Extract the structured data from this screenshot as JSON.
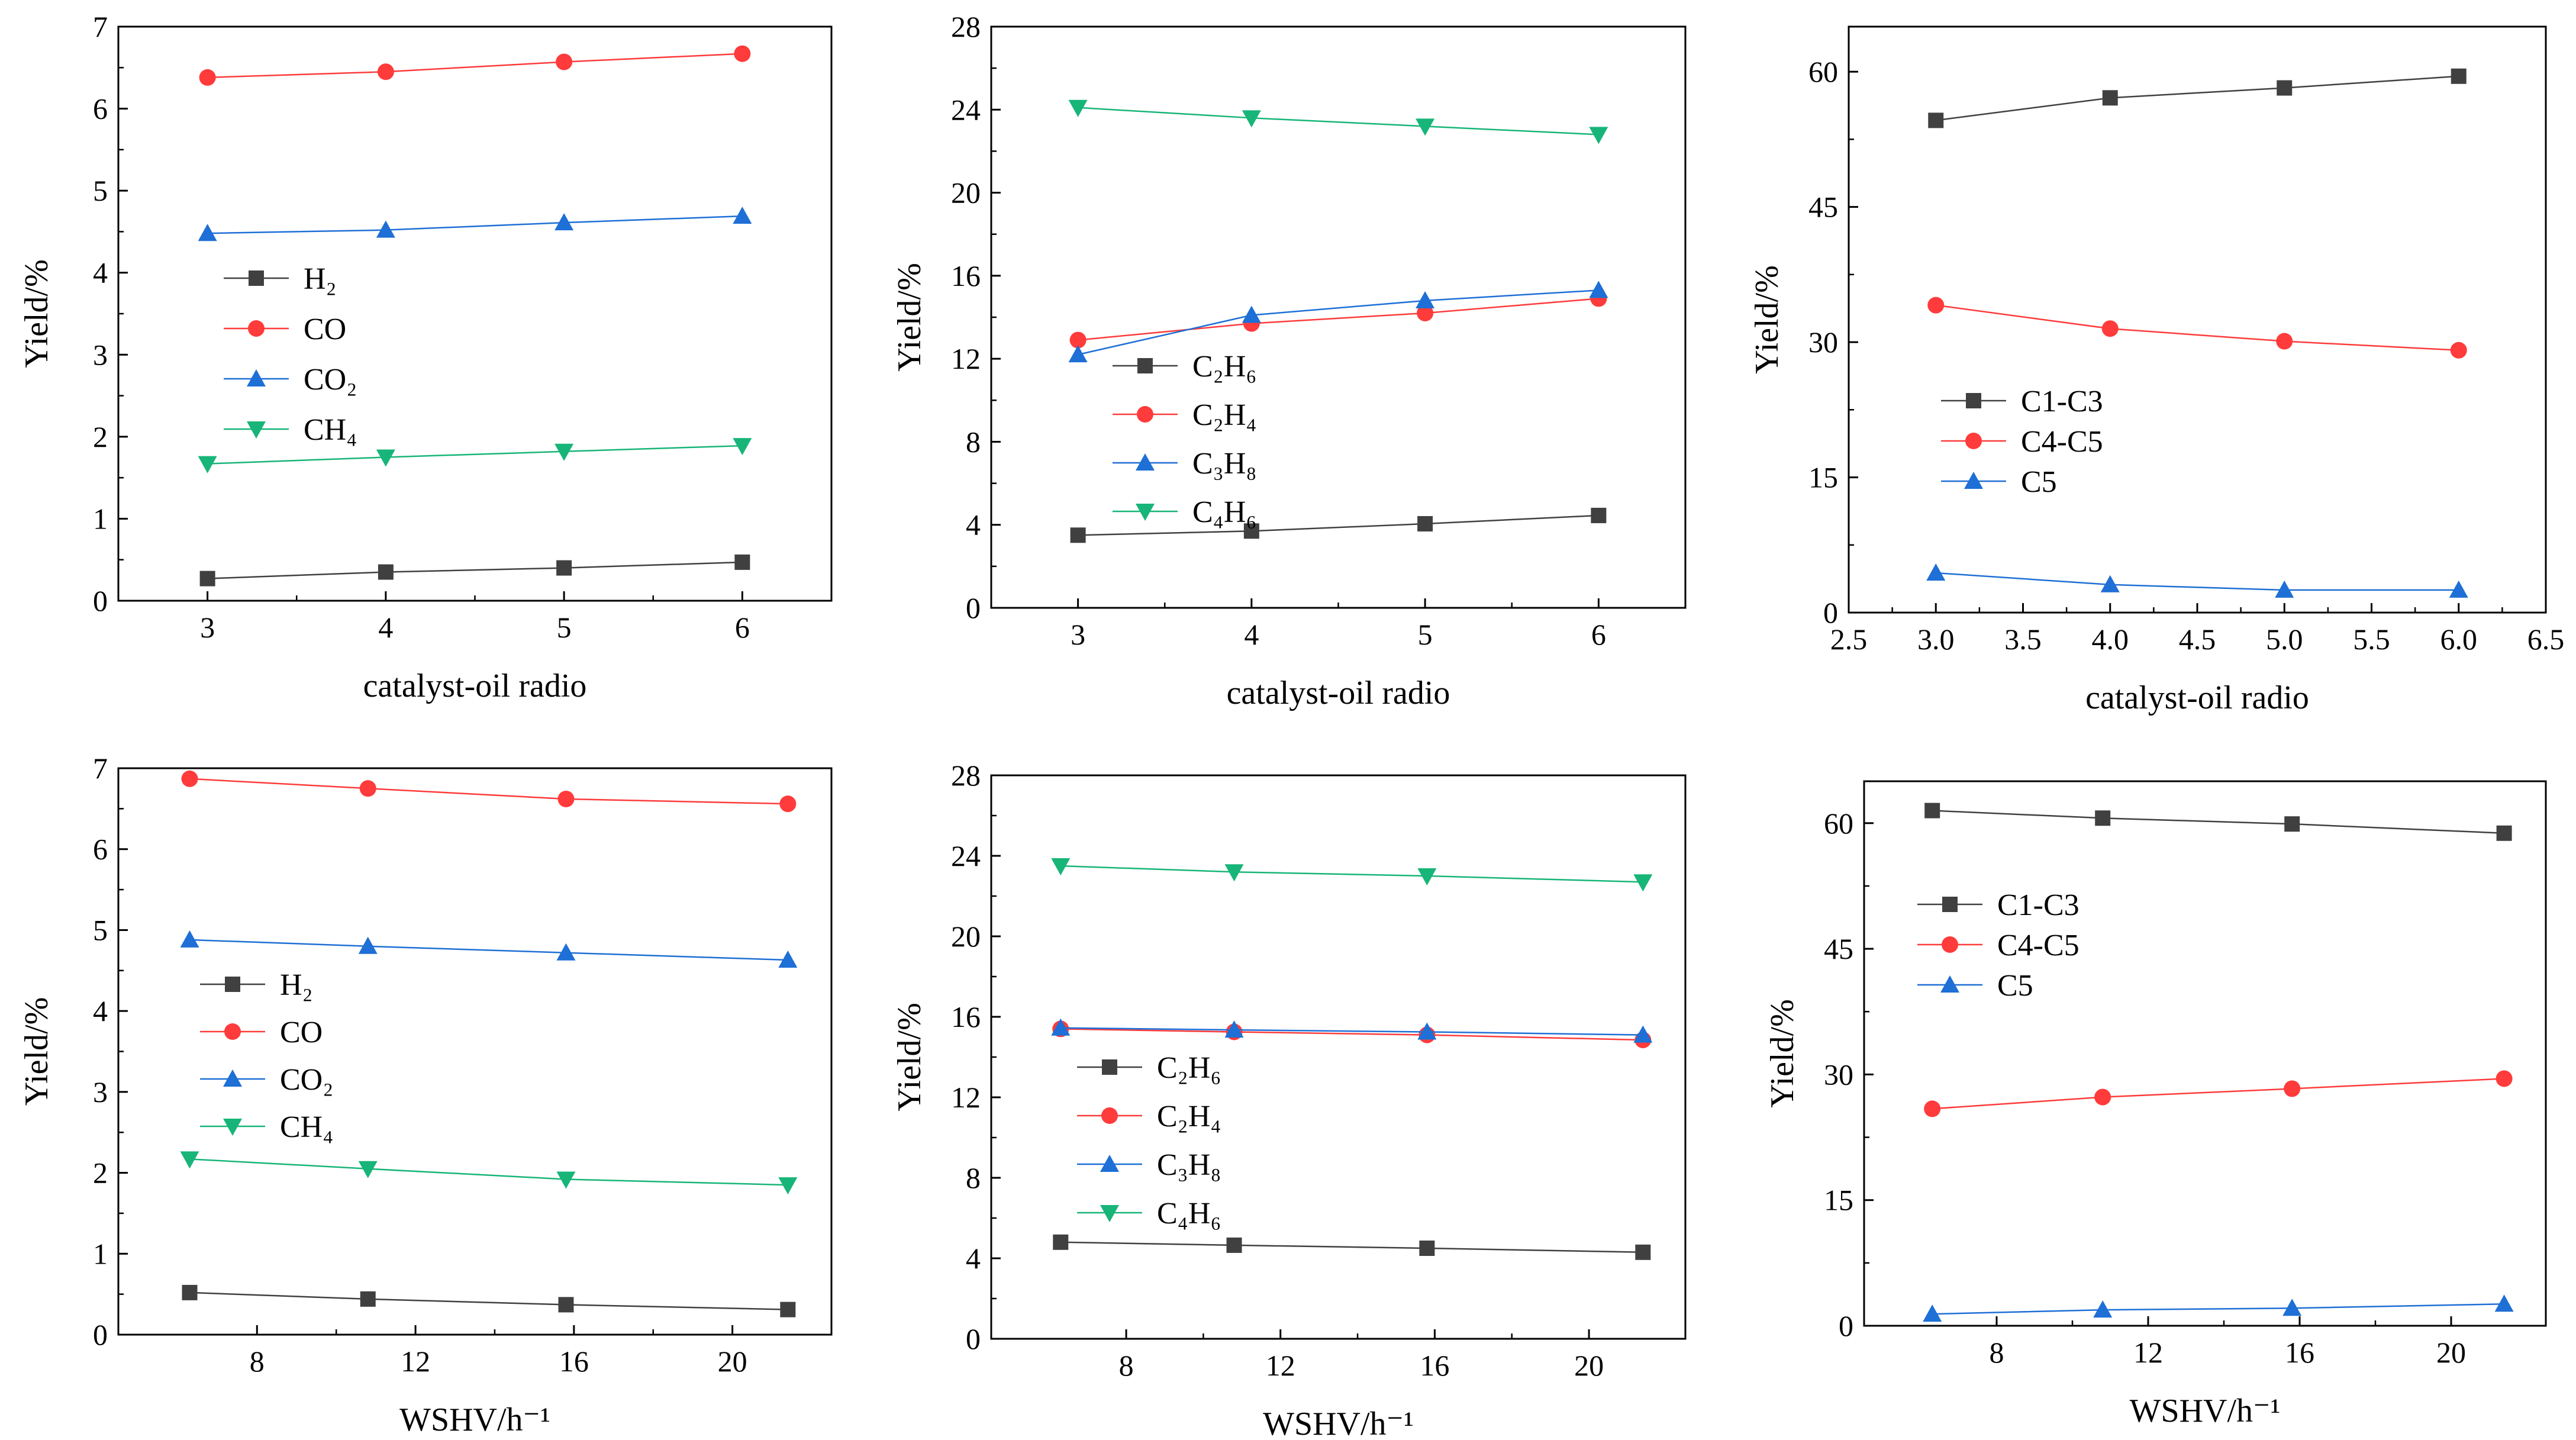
{
  "chart_data": [
    {
      "type": "line",
      "xlabel": "catalyst-oil radio",
      "ylabel": "Yield/%",
      "xlim": [
        2.5,
        6.5
      ],
      "ylim": [
        0,
        7
      ],
      "xticks": [
        "3",
        "4",
        "5",
        "6"
      ],
      "xtick_values": [
        3,
        4,
        5,
        6
      ],
      "yticks": [
        "0",
        "1",
        "2",
        "3",
        "4",
        "5",
        "6",
        "7"
      ],
      "ytick_values": [
        0,
        1,
        2,
        3,
        4,
        5,
        6,
        7
      ],
      "legend": "center-left",
      "series": [
        {
          "name": "H₂",
          "marker": "square",
          "color": "#404040",
          "x": [
            3,
            4,
            5,
            6
          ],
          "values": [
            0.27,
            0.35,
            0.4,
            0.47
          ]
        },
        {
          "name": "CO",
          "marker": "circle",
          "color": "#ff3b3b",
          "x": [
            3,
            4,
            5,
            6
          ],
          "values": [
            6.38,
            6.45,
            6.57,
            6.67
          ]
        },
        {
          "name": "CO₂",
          "marker": "triangle-up",
          "color": "#1e6fd6",
          "x": [
            3,
            4,
            5,
            6
          ],
          "values": [
            4.48,
            4.52,
            4.61,
            4.69
          ]
        },
        {
          "name": "CH₄",
          "marker": "triangle-down",
          "color": "#17b578",
          "x": [
            3,
            4,
            5,
            6
          ],
          "values": [
            1.67,
            1.75,
            1.82,
            1.89
          ]
        }
      ]
    },
    {
      "type": "line",
      "xlabel": "catalyst-oil radio",
      "ylabel": "Yield/%",
      "xlim": [
        2.5,
        6.5
      ],
      "ylim": [
        0,
        28
      ],
      "xticks": [
        "3",
        "4",
        "5",
        "6"
      ],
      "xtick_values": [
        3,
        4,
        5,
        6
      ],
      "yticks": [
        "0",
        "4",
        "8",
        "12",
        "16",
        "20",
        "24",
        "28"
      ],
      "ytick_values": [
        0,
        4,
        8,
        12,
        16,
        20,
        24,
        28
      ],
      "legend": "center-left",
      "series": [
        {
          "name": "C₂H₆",
          "marker": "square",
          "color": "#404040",
          "x": [
            3,
            4,
            5,
            6
          ],
          "values": [
            3.5,
            3.7,
            4.05,
            4.45
          ]
        },
        {
          "name": "C₂H₄",
          "marker": "circle",
          "color": "#ff3b3b",
          "x": [
            3,
            4,
            5,
            6
          ],
          "values": [
            12.9,
            13.7,
            14.2,
            14.9
          ]
        },
        {
          "name": "C₃H₈",
          "marker": "triangle-up",
          "color": "#1e6fd6",
          "x": [
            3,
            4,
            5,
            6
          ],
          "values": [
            12.2,
            14.1,
            14.8,
            15.3
          ]
        },
        {
          "name": "C₄H₆",
          "marker": "triangle-down",
          "color": "#17b578",
          "x": [
            3,
            4,
            5,
            6
          ],
          "values": [
            24.1,
            23.6,
            23.2,
            22.8
          ]
        }
      ]
    },
    {
      "type": "line",
      "xlabel": "catalyst-oil radio",
      "ylabel": "Yield/%",
      "xlim": [
        2.5,
        6.5
      ],
      "ylim": [
        0,
        65
      ],
      "xticks": [
        "2.5",
        "3.0",
        "3.5",
        "4.0",
        "4.5",
        "5.0",
        "5.5",
        "6.0",
        "6.5"
      ],
      "xtick_values": [
        2.5,
        3.0,
        3.5,
        4.0,
        4.5,
        5.0,
        5.5,
        6.0,
        6.5
      ],
      "yticks": [
        "0",
        "15",
        "30",
        "45",
        "60"
      ],
      "ytick_values": [
        0,
        15,
        30,
        45,
        60
      ],
      "legend": "center-left",
      "series": [
        {
          "name": "C1-C3",
          "marker": "square",
          "color": "#404040",
          "x": [
            3,
            4,
            5,
            6
          ],
          "values": [
            54.6,
            57.1,
            58.2,
            59.5
          ]
        },
        {
          "name": "C4-C5",
          "marker": "circle",
          "color": "#ff3b3b",
          "x": [
            3,
            4,
            5,
            6
          ],
          "values": [
            34.1,
            31.5,
            30.1,
            29.1
          ]
        },
        {
          "name": "C5",
          "marker": "triangle-up",
          "color": "#1e6fd6",
          "x": [
            3,
            4,
            5,
            6
          ],
          "values": [
            4.4,
            3.1,
            2.5,
            2.5
          ]
        }
      ]
    },
    {
      "type": "line",
      "xlabel": "WSHV/h⁻¹",
      "ylabel": "Yield/%",
      "xlim": [
        4.5,
        22.5
      ],
      "ylim": [
        0,
        7
      ],
      "xticks": [
        "8",
        "12",
        "16",
        "20"
      ],
      "xtick_values": [
        8,
        12,
        16,
        20
      ],
      "yticks": [
        "0",
        "1",
        "2",
        "3",
        "4",
        "5",
        "6",
        "7"
      ],
      "ytick_values": [
        0,
        1,
        2,
        3,
        4,
        5,
        6,
        7
      ],
      "legend": "center-left",
      "series": [
        {
          "name": "H₂",
          "marker": "square",
          "color": "#404040",
          "x": [
            6.3,
            10.8,
            15.8,
            21.4
          ],
          "values": [
            0.52,
            0.44,
            0.37,
            0.31
          ]
        },
        {
          "name": "CO",
          "marker": "circle",
          "color": "#ff3b3b",
          "x": [
            6.3,
            10.8,
            15.8,
            21.4
          ],
          "values": [
            6.87,
            6.75,
            6.62,
            6.56
          ]
        },
        {
          "name": "CO₂",
          "marker": "triangle-up",
          "color": "#1e6fd6",
          "x": [
            6.3,
            10.8,
            15.8,
            21.4
          ],
          "values": [
            4.88,
            4.8,
            4.72,
            4.63
          ]
        },
        {
          "name": "CH₄",
          "marker": "triangle-down",
          "color": "#17b578",
          "x": [
            6.3,
            10.8,
            15.8,
            21.4
          ],
          "values": [
            2.17,
            2.05,
            1.92,
            1.85
          ]
        }
      ]
    },
    {
      "type": "line",
      "xlabel": "WSHV/h⁻¹",
      "ylabel": "Yield/%",
      "xlim": [
        4.5,
        22.5
      ],
      "ylim": [
        0,
        28
      ],
      "xticks": [
        "8",
        "12",
        "16",
        "20"
      ],
      "xtick_values": [
        8,
        12,
        16,
        20
      ],
      "yticks": [
        "0",
        "4",
        "8",
        "12",
        "16",
        "20",
        "24",
        "28"
      ],
      "ytick_values": [
        0,
        4,
        8,
        12,
        16,
        20,
        24,
        28
      ],
      "legend": "center-left",
      "series": [
        {
          "name": "C₂H₆",
          "marker": "square",
          "color": "#404040",
          "x": [
            6.3,
            10.8,
            15.8,
            21.4
          ],
          "values": [
            4.8,
            4.65,
            4.5,
            4.3
          ]
        },
        {
          "name": "C₂H₄",
          "marker": "circle",
          "color": "#ff3b3b",
          "x": [
            6.3,
            10.8,
            15.8,
            21.4
          ],
          "values": [
            15.4,
            15.25,
            15.1,
            14.85
          ]
        },
        {
          "name": "C₃H₈",
          "marker": "triangle-up",
          "color": "#1e6fd6",
          "x": [
            6.3,
            10.8,
            15.8,
            21.4
          ],
          "values": [
            15.45,
            15.35,
            15.25,
            15.1
          ]
        },
        {
          "name": "C₄H₆",
          "marker": "triangle-down",
          "color": "#17b578",
          "x": [
            6.3,
            10.8,
            15.8,
            21.4
          ],
          "values": [
            23.5,
            23.2,
            23.0,
            22.7
          ]
        }
      ]
    },
    {
      "type": "line",
      "xlabel": "WSHV/h⁻¹",
      "ylabel": "Yield/%",
      "xlim": [
        4.5,
        22.5
      ],
      "ylim": [
        0,
        65
      ],
      "xticks": [
        "8",
        "12",
        "16",
        "20"
      ],
      "xtick_values": [
        8,
        12,
        16,
        20
      ],
      "yticks": [
        "0",
        "15",
        "30",
        "45",
        "60"
      ],
      "ytick_values": [
        0,
        15,
        30,
        45,
        60
      ],
      "legend": "center-left",
      "series": [
        {
          "name": "C1-C3",
          "marker": "square",
          "color": "#404040",
          "x": [
            6.3,
            10.8,
            15.8,
            21.4
          ],
          "values": [
            61.5,
            60.6,
            59.9,
            58.8
          ]
        },
        {
          "name": "C4-C5",
          "marker": "circle",
          "color": "#ff3b3b",
          "x": [
            6.3,
            10.8,
            15.8,
            21.4
          ],
          "values": [
            25.9,
            27.3,
            28.3,
            29.5
          ]
        },
        {
          "name": "C5",
          "marker": "triangle-up",
          "color": "#1e6fd6",
          "x": [
            6.3,
            10.8,
            15.8,
            21.4
          ],
          "values": [
            1.4,
            1.9,
            2.1,
            2.6
          ]
        }
      ]
    }
  ]
}
